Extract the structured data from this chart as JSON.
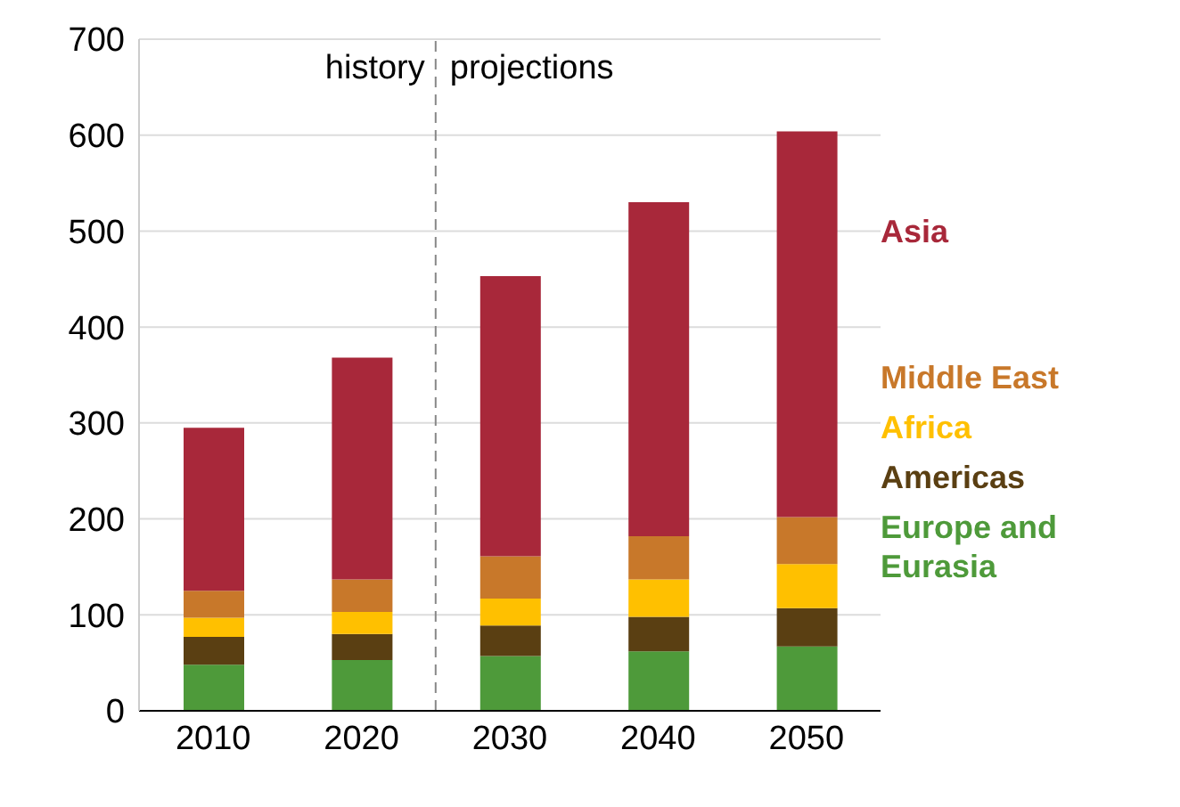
{
  "chart_data": {
    "type": "bar",
    "stacked": true,
    "x": [
      2010,
      2020,
      2030,
      2040,
      2050
    ],
    "xlim": [
      2005,
      2055
    ],
    "xticks": [
      2010,
      2020,
      2030,
      2040,
      2050
    ],
    "ylim": [
      0,
      700
    ],
    "yticks": [
      0,
      100,
      200,
      300,
      400,
      500,
      600,
      700
    ],
    "grid": "y",
    "legend": "right",
    "series": [
      {
        "name": "Europe and Eurasia",
        "color": "#4e9a3a",
        "values": [
          48,
          53,
          57,
          62,
          67
        ]
      },
      {
        "name": "Americas",
        "color": "#5a3f12",
        "values": [
          29,
          27,
          32,
          36,
          40
        ]
      },
      {
        "name": "Africa",
        "color": "#ffc000",
        "values": [
          20,
          23,
          28,
          39,
          46
        ]
      },
      {
        "name": "Middle East",
        "color": "#c8782a",
        "values": [
          28,
          34,
          44,
          45,
          49
        ]
      },
      {
        "name": "Asia",
        "color": "#a8283a",
        "values": [
          170,
          231,
          292,
          348,
          402
        ]
      }
    ],
    "ref_lines": [
      {
        "axis": "x",
        "value": 2025,
        "line_style": "dashed",
        "color": "#888888"
      }
    ],
    "annotations": [
      "history",
      "projections"
    ]
  }
}
